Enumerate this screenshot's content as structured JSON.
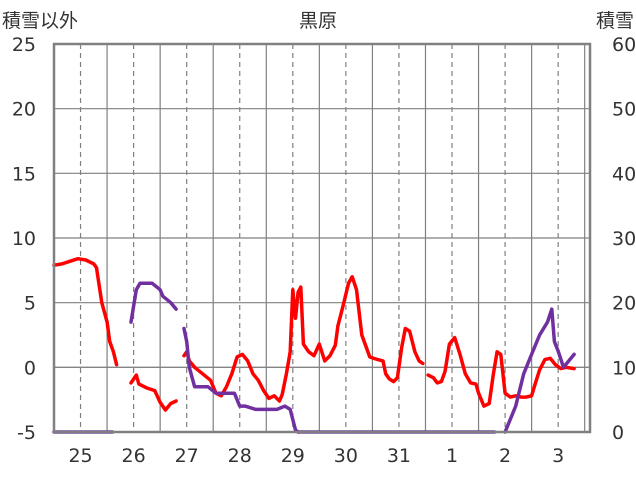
{
  "chart_data": {
    "type": "line",
    "title": "黒原",
    "y_left_label": "積雪以外",
    "y_right_label": "積雪",
    "x_categories": [
      "25",
      "26",
      "27",
      "28",
      "29",
      "30",
      "31",
      "1",
      "2",
      "3"
    ],
    "x_range": [
      24.5,
      34.6
    ],
    "y_left_range": [
      -5,
      25
    ],
    "y_left_ticks": [
      "-5",
      "0",
      "5",
      "10",
      "15",
      "20",
      "25"
    ],
    "y_right_range": [
      0,
      60
    ],
    "y_right_ticks": [
      "0",
      "10",
      "20",
      "30",
      "40",
      "50",
      "60"
    ],
    "grid": true,
    "series": [
      {
        "axis": "left",
        "color": "#ff0000",
        "segments": [
          [
            [
              24.5,
              7.9
            ],
            [
              24.65,
              8.0
            ],
            [
              24.8,
              8.2
            ],
            [
              24.95,
              8.4
            ],
            [
              25.1,
              8.3
            ],
            [
              25.25,
              8.0
            ],
            [
              25.3,
              7.7
            ],
            [
              25.4,
              5.0
            ],
            [
              25.5,
              3.5
            ],
            [
              25.55,
              2.0
            ],
            [
              25.62,
              1.2
            ],
            [
              25.68,
              0.2
            ]
          ],
          [
            [
              25.95,
              -1.2
            ],
            [
              26.05,
              -0.6
            ],
            [
              26.1,
              -1.3
            ],
            [
              26.25,
              -1.6
            ],
            [
              26.4,
              -1.8
            ],
            [
              26.5,
              -2.7
            ],
            [
              26.6,
              -3.3
            ],
            [
              26.7,
              -2.8
            ],
            [
              26.8,
              -2.6
            ]
          ],
          [
            [
              26.95,
              0.9
            ],
            [
              27.0,
              1.2
            ],
            [
              27.05,
              0.5
            ],
            [
              27.15,
              0.0
            ],
            [
              27.3,
              -0.5
            ],
            [
              27.45,
              -1.0
            ],
            [
              27.55,
              -2.0
            ],
            [
              27.65,
              -2.2
            ],
            [
              27.75,
              -1.5
            ],
            [
              27.85,
              -0.5
            ],
            [
              27.95,
              0.8
            ],
            [
              28.05,
              1.0
            ],
            [
              28.15,
              0.5
            ],
            [
              28.25,
              -0.5
            ],
            [
              28.35,
              -1.0
            ],
            [
              28.45,
              -1.8
            ],
            [
              28.55,
              -2.4
            ],
            [
              28.65,
              -2.2
            ],
            [
              28.75,
              -2.6
            ],
            [
              28.8,
              -2.1
            ],
            [
              28.88,
              -0.5
            ],
            [
              28.95,
              1.2
            ],
            [
              29.0,
              6.0
            ],
            [
              29.05,
              3.8
            ],
            [
              29.1,
              5.8
            ],
            [
              29.15,
              6.2
            ],
            [
              29.2,
              1.8
            ],
            [
              29.3,
              1.2
            ],
            [
              29.4,
              0.9
            ],
            [
              29.5,
              1.8
            ],
            [
              29.6,
              0.5
            ],
            [
              29.7,
              0.9
            ],
            [
              29.8,
              1.7
            ],
            [
              29.85,
              3.2
            ],
            [
              29.95,
              4.8
            ],
            [
              30.05,
              6.5
            ],
            [
              30.12,
              7.0
            ],
            [
              30.2,
              6.0
            ],
            [
              30.3,
              2.5
            ],
            [
              30.45,
              0.8
            ],
            [
              30.6,
              0.6
            ],
            [
              30.7,
              0.5
            ],
            [
              30.75,
              -0.5
            ],
            [
              30.82,
              -0.9
            ],
            [
              30.9,
              -1.1
            ],
            [
              30.97,
              -0.8
            ],
            [
              31.05,
              1.5
            ],
            [
              31.12,
              3.0
            ],
            [
              31.2,
              2.8
            ],
            [
              31.3,
              1.2
            ],
            [
              31.38,
              0.5
            ],
            [
              31.45,
              0.3
            ]
          ],
          [
            [
              31.55,
              -0.6
            ],
            [
              31.65,
              -0.8
            ],
            [
              31.72,
              -1.2
            ],
            [
              31.8,
              -1.1
            ],
            [
              31.87,
              -0.3
            ],
            [
              31.95,
              1.8
            ],
            [
              32.05,
              2.3
            ],
            [
              32.15,
              1.0
            ],
            [
              32.25,
              -0.5
            ],
            [
              32.35,
              -1.2
            ],
            [
              32.45,
              -1.3
            ],
            [
              32.5,
              -2.0
            ],
            [
              32.6,
              -3.0
            ],
            [
              32.7,
              -2.8
            ],
            [
              32.78,
              -0.5
            ],
            [
              32.85,
              1.2
            ],
            [
              32.92,
              1.0
            ],
            [
              33.0,
              -2.0
            ],
            [
              33.1,
              -2.3
            ],
            [
              33.2,
              -2.2
            ],
            [
              33.3,
              -2.3
            ],
            [
              33.4,
              -2.3
            ],
            [
              33.5,
              -2.2
            ],
            [
              33.55,
              -1.5
            ],
            [
              33.65,
              -0.2
            ],
            [
              33.75,
              0.6
            ],
            [
              33.85,
              0.7
            ],
            [
              33.95,
              0.2
            ],
            [
              34.05,
              -0.1
            ],
            [
              34.15,
              0.0
            ],
            [
              34.3,
              -0.1
            ]
          ]
        ]
      },
      {
        "axis": "right",
        "color": "#7030a0",
        "segments": [
          [
            [
              24.5,
              0
            ],
            [
              25.6,
              0
            ]
          ],
          [
            [
              25.95,
              17
            ],
            [
              26.05,
              22
            ],
            [
              26.12,
              23
            ],
            [
              26.2,
              23
            ],
            [
              26.35,
              23
            ],
            [
              26.5,
              22
            ],
            [
              26.55,
              21
            ],
            [
              26.7,
              20
            ],
            [
              26.8,
              19
            ]
          ],
          [
            [
              26.95,
              16
            ],
            [
              27.0,
              14
            ],
            [
              27.05,
              10
            ],
            [
              27.15,
              7
            ],
            [
              27.25,
              7
            ],
            [
              27.4,
              7
            ],
            [
              27.55,
              6
            ],
            [
              27.7,
              6
            ],
            [
              27.9,
              6
            ],
            [
              28.0,
              4
            ],
            [
              28.1,
              4
            ],
            [
              28.3,
              3.5
            ],
            [
              28.5,
              3.5
            ],
            [
              28.7,
              3.5
            ],
            [
              28.85,
              4
            ],
            [
              28.95,
              3.5
            ],
            [
              29.05,
              0.3
            ],
            [
              29.1,
              0
            ]
          ],
          [
            [
              29.1,
              0
            ],
            [
              31.5,
              0
            ],
            [
              32.8,
              0
            ]
          ],
          [
            [
              33.0,
              0
            ],
            [
              33.1,
              2
            ],
            [
              33.2,
              4
            ],
            [
              33.35,
              9
            ],
            [
              33.5,
              12
            ],
            [
              33.65,
              15
            ],
            [
              33.8,
              17
            ],
            [
              33.88,
              19
            ],
            [
              33.93,
              14
            ],
            [
              34.0,
              12.5
            ],
            [
              34.1,
              10
            ],
            [
              34.2,
              11
            ],
            [
              34.3,
              12
            ]
          ]
        ]
      }
    ]
  }
}
